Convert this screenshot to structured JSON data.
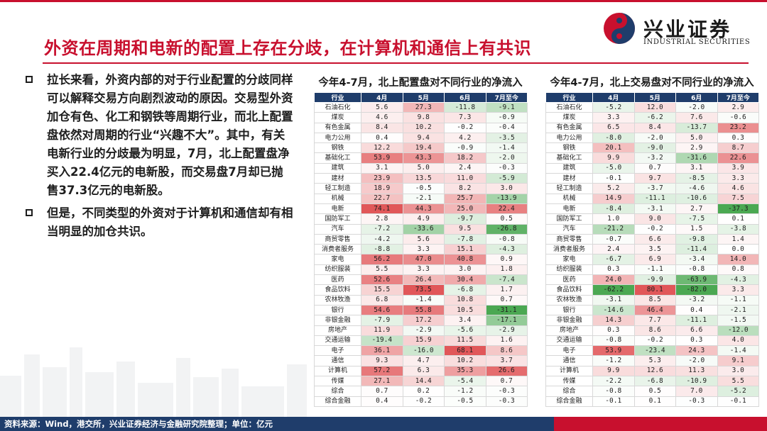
{
  "title": "外资在周期和电新的配置上存在分歧，在计算机和通信上有共识",
  "logo": {
    "cn": "兴业证券",
    "en": "INDUSTRIAL SECURITIES"
  },
  "bullets": [
    "拉长来看，外资内部的对于行业配置的分歧同样可以解释交易方向剧烈波动的原因。交易型外资加仓有色、化工和钢铁等周期行业，而北上配置盘依然对周期的行业“兴趣不大”。其中，有关电新行业的分歧最为明显，7月，北上配置盘净买入22.4亿元的电新股，而交易盘7月却已抛售37.3亿元的电新股。",
    "但是，不同类型的外资对于计算机和通信却有相当明显的加仓共识。"
  ],
  "colors": {
    "pos": "#e15759",
    "neg": "#4ba852",
    "header": "#1f3d6b",
    "brand": "#c8102e"
  },
  "tables": [
    {
      "title": "今年4-7月，北上配置盘对不同行业的净流入",
      "headers": [
        "行业",
        "4月",
        "5月",
        "6月",
        "7月至今"
      ],
      "rows": [
        [
          "石油石化",
          "5.6",
          "27.3",
          "-11.8",
          "-9.1"
        ],
        [
          "煤炭",
          "4.6",
          "9.8",
          "7.3",
          "-0.9"
        ],
        [
          "有色金属",
          "8.4",
          "10.2",
          "-0.2",
          "-0.4"
        ],
        [
          "电力公用",
          "0.4",
          "9.4",
          "4.2",
          "-3.5"
        ],
        [
          "钢铁",
          "12.2",
          "19.4",
          "-0.9",
          "-1.4"
        ],
        [
          "基础化工",
          "53.9",
          "43.3",
          "18.2",
          "-2.0"
        ],
        [
          "建筑",
          "3.1",
          "5.0",
          "2.4",
          "-0.3"
        ],
        [
          "建材",
          "23.9",
          "13.5",
          "11.0",
          "-5.9"
        ],
        [
          "轻工制造",
          "18.9",
          "-0.5",
          "8.2",
          "3.0"
        ],
        [
          "机械",
          "22.7",
          "-2.1",
          "25.7",
          "-13.9"
        ],
        [
          "电新",
          "74.1",
          "44.3",
          "25.0",
          "22.4"
        ],
        [
          "国防军工",
          "2.8",
          "4.9",
          "-9.7",
          "0.5"
        ],
        [
          "汽车",
          "-7.2",
          "-33.6",
          "9.5",
          "-26.8"
        ],
        [
          "商贸零售",
          "-4.2",
          "5.6",
          "-7.8",
          "-0.8"
        ],
        [
          "消费者服务",
          "-8.8",
          "3.3",
          "15.1",
          "-4.3"
        ],
        [
          "家电",
          "56.2",
          "47.0",
          "40.8",
          "0.9"
        ],
        [
          "纺织服装",
          "5.5",
          "3.3",
          "3.0",
          "1.8"
        ],
        [
          "医药",
          "52.6",
          "26.4",
          "30.4",
          "-7.4"
        ],
        [
          "食品饮料",
          "15.5",
          "73.5",
          "-6.8",
          "1.7"
        ],
        [
          "农林牧渔",
          "6.8",
          "-1.4",
          "10.8",
          "0.7"
        ],
        [
          "银行",
          "54.6",
          "55.8",
          "10.5",
          "-31.1"
        ],
        [
          "非银金融",
          "-7.9",
          "17.2",
          "3.4",
          "-17.1"
        ],
        [
          "房地产",
          "11.9",
          "-2.9",
          "-5.6",
          "-2.9"
        ],
        [
          "交通运输",
          "-19.4",
          "15.9",
          "11.5",
          "1.6"
        ],
        [
          "电子",
          "36.1",
          "-16.0",
          "68.1",
          "8.6"
        ],
        [
          "通信",
          "9.3",
          "4.7",
          "10.2",
          "3.7"
        ],
        [
          "计算机",
          "57.2",
          "6.3",
          "35.3",
          "26.6"
        ],
        [
          "传媒",
          "27.1",
          "14.4",
          "-5.4",
          "0.7"
        ],
        [
          "综合",
          "0.7",
          "0.2",
          "-1.2",
          "-0.3"
        ],
        [
          "综合金融",
          "0.4",
          "-0.2",
          "-0.5",
          "-0.3"
        ]
      ]
    },
    {
      "title": "今年4-7月，北上交易盘对不同行业的净流入",
      "headers": [
        "行业",
        "4月",
        "5月",
        "6月",
        "7月至今"
      ],
      "rows": [
        [
          "石油石化",
          "-5.2",
          "12.0",
          "-2.0",
          "2.9"
        ],
        [
          "煤炭",
          "3.3",
          "-6.2",
          "7.6",
          "-0.6"
        ],
        [
          "有色金属",
          "6.5",
          "8.4",
          "-13.7",
          "23.2"
        ],
        [
          "电力公用",
          "-8.0",
          "-2.0",
          "5.0",
          "0.3"
        ],
        [
          "钢铁",
          "20.1",
          "-9.0",
          "2.9",
          "8.7"
        ],
        [
          "基础化工",
          "9.9",
          "-3.2",
          "-31.6",
          "22.6"
        ],
        [
          "建筑",
          "-5.0",
          "0.7",
          "3.1",
          "3.9"
        ],
        [
          "建材",
          "-0.1",
          "9.7",
          "-8.5",
          "3.3"
        ],
        [
          "轻工制造",
          "5.2",
          "-3.7",
          "-4.6",
          "4.6"
        ],
        [
          "机械",
          "14.9",
          "-11.1",
          "-10.6",
          "7.5"
        ],
        [
          "电新",
          "-8.4",
          "-3.1",
          "2.7",
          "-37.3"
        ],
        [
          "国防军工",
          "1.0",
          "9.0",
          "-7.5",
          "0.1"
        ],
        [
          "汽车",
          "-21.2",
          "-0.2",
          "1.5",
          "-3.8"
        ],
        [
          "商贸零售",
          "-0.7",
          "6.6",
          "-9.8",
          "1.4"
        ],
        [
          "消费者服务",
          "2.4",
          "3.5",
          "-11.4",
          "0.0"
        ],
        [
          "家电",
          "-6.7",
          "6.9",
          "-3.4",
          "14.0"
        ],
        [
          "纺织服装",
          "0.3",
          "-1.1",
          "-0.8",
          "0.8"
        ],
        [
          "医药",
          "24.0",
          "-9.9",
          "-63.9",
          "-4.3"
        ],
        [
          "食品饮料",
          "-62.2",
          "80.1",
          "-82.0",
          "3.3"
        ],
        [
          "农林牧渔",
          "-3.1",
          "8.5",
          "-3.2",
          "-1.1"
        ],
        [
          "银行",
          "-14.6",
          "46.4",
          "0.4",
          "-2.1"
        ],
        [
          "非银金融",
          "14.3",
          "7.7",
          "-11.1",
          "-1.5"
        ],
        [
          "房地产",
          "0.3",
          "8.6",
          "6.6",
          "-12.0"
        ],
        [
          "交通运输",
          "-0.8",
          "-0.2",
          "0.3",
          "4.0"
        ],
        [
          "电子",
          "53.9",
          "-23.4",
          "24.3",
          "-1.4"
        ],
        [
          "通信",
          "-1.2",
          "5.3",
          "-2.0",
          "9.1"
        ],
        [
          "计算机",
          "9.9",
          "12.6",
          "11.3",
          "3.0"
        ],
        [
          "传媒",
          "-2.2",
          "-6.8",
          "-10.9",
          "5.5"
        ],
        [
          "综合",
          "-0.8",
          "0.5",
          "7.0",
          "-5.2"
        ],
        [
          "综合金融",
          "-0.1",
          "0.1",
          "-0.3",
          "-0.1"
        ]
      ]
    }
  ],
  "footer": "资料来源：Wind，港交所，兴业证券经济与金融研究院整理；单位：亿元"
}
